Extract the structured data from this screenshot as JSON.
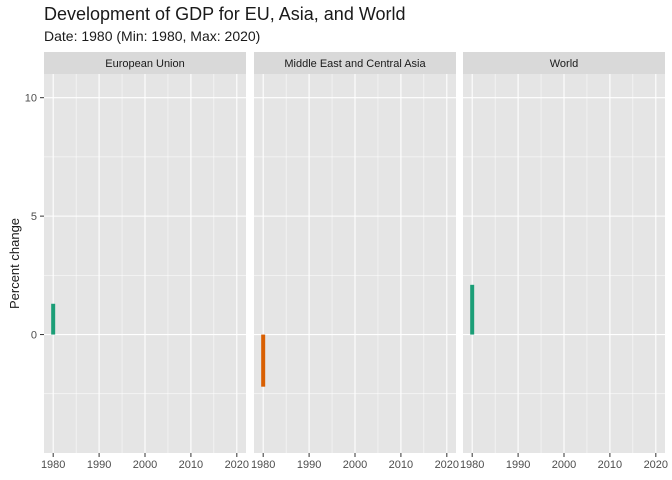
{
  "title": "Development of GDP for EU, Asia, and World",
  "subtitle": "Date: 1980 (Min: 1980, Max: 2020)",
  "chart_data": {
    "type": "bar",
    "facet_by": "region",
    "panels": [
      {
        "name": "European Union",
        "x": [
          1980
        ],
        "values": [
          1.3
        ],
        "color": "#1b9e77"
      },
      {
        "name": "Middle East and Central Asia",
        "x": [
          1980
        ],
        "values": [
          -2.2
        ],
        "color": "#d95f02"
      },
      {
        "name": "World",
        "x": [
          1980
        ],
        "values": [
          2.1
        ],
        "color": "#1b9e77"
      }
    ],
    "xlabel": "",
    "ylabel": "Percent change",
    "xlim": [
      1978,
      2022
    ],
    "ylim": [
      -5,
      11
    ],
    "x_ticks": [
      1980,
      1990,
      2000,
      2010,
      2020
    ],
    "y_ticks": [
      0,
      5,
      10
    ],
    "grid": true,
    "legend": "none",
    "colors": {
      "panel_bg": "#e5e5e5",
      "strip_bg": "#d9d9d9",
      "grid": "#ffffff",
      "positive": "#1b9e77",
      "negative": "#d95f02"
    }
  }
}
